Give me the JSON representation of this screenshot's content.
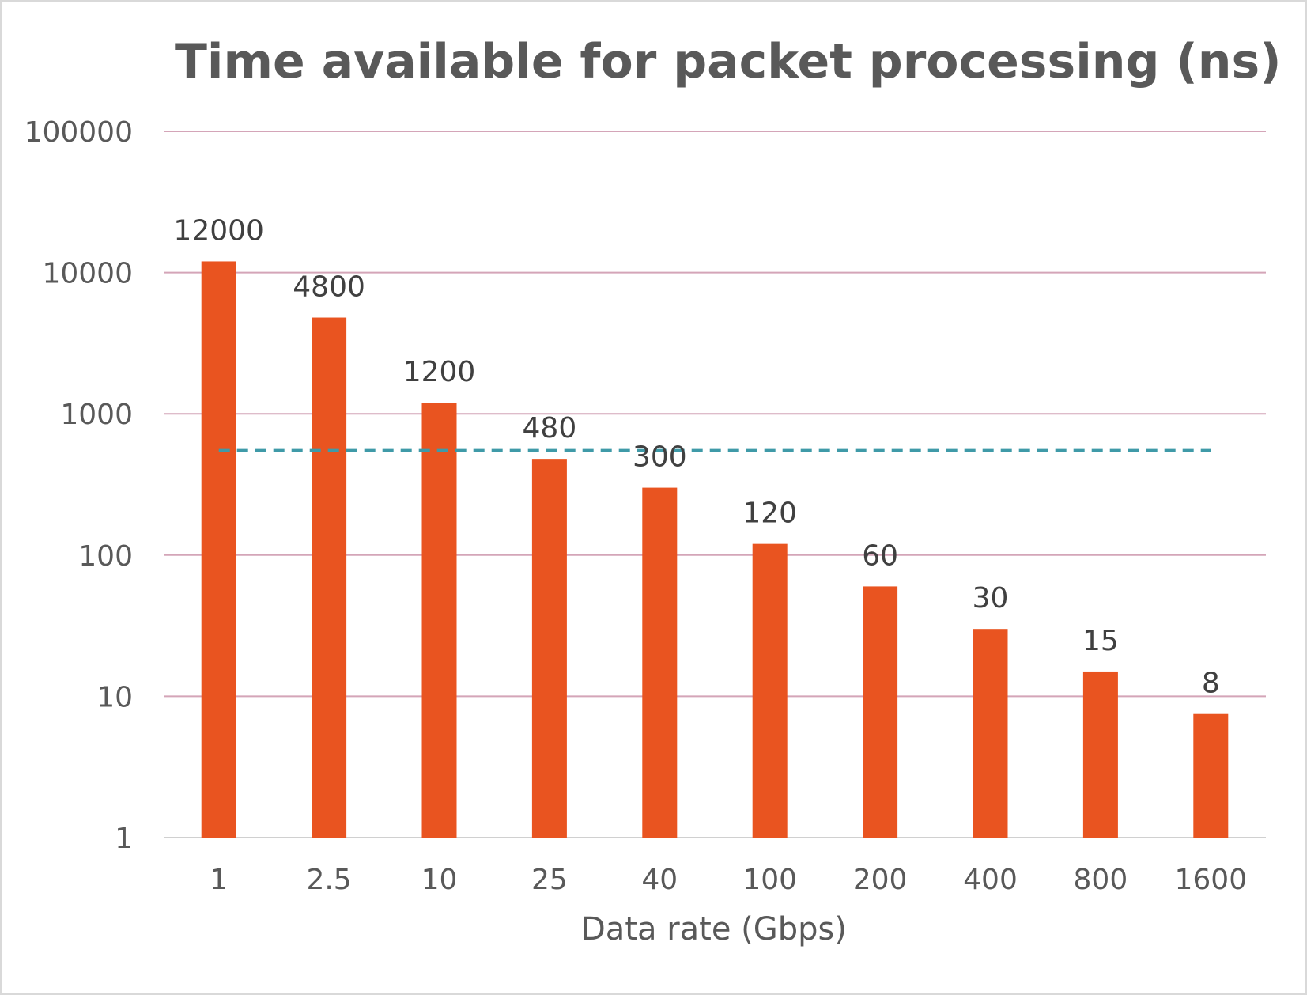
{
  "chart_data": {
    "type": "bar",
    "title": "Time available for packet processing (ns)",
    "xlabel": "Data rate (Gbps)",
    "ylabel": "",
    "yscale": "log",
    "ylim": [
      1,
      100000
    ],
    "yticks": [
      "100000",
      "10000",
      "1000",
      "100",
      "10",
      "1"
    ],
    "categories": [
      "1",
      "2.5",
      "10",
      "25",
      "40",
      "100",
      "200",
      "400",
      "800",
      "1600"
    ],
    "values": [
      12000,
      4800,
      1200,
      480,
      300,
      120,
      60,
      30,
      15,
      7.5
    ],
    "data_labels": [
      "12000",
      "4800",
      "1200",
      "480",
      "300",
      "120",
      "60",
      "30",
      "15",
      "8"
    ],
    "reference_line": {
      "value": 550,
      "style": "dashed",
      "color": "#3f9aa8"
    },
    "bar_color": "#e95420",
    "grid_color": "#d4a5b8",
    "grid": true,
    "legend": "none"
  }
}
